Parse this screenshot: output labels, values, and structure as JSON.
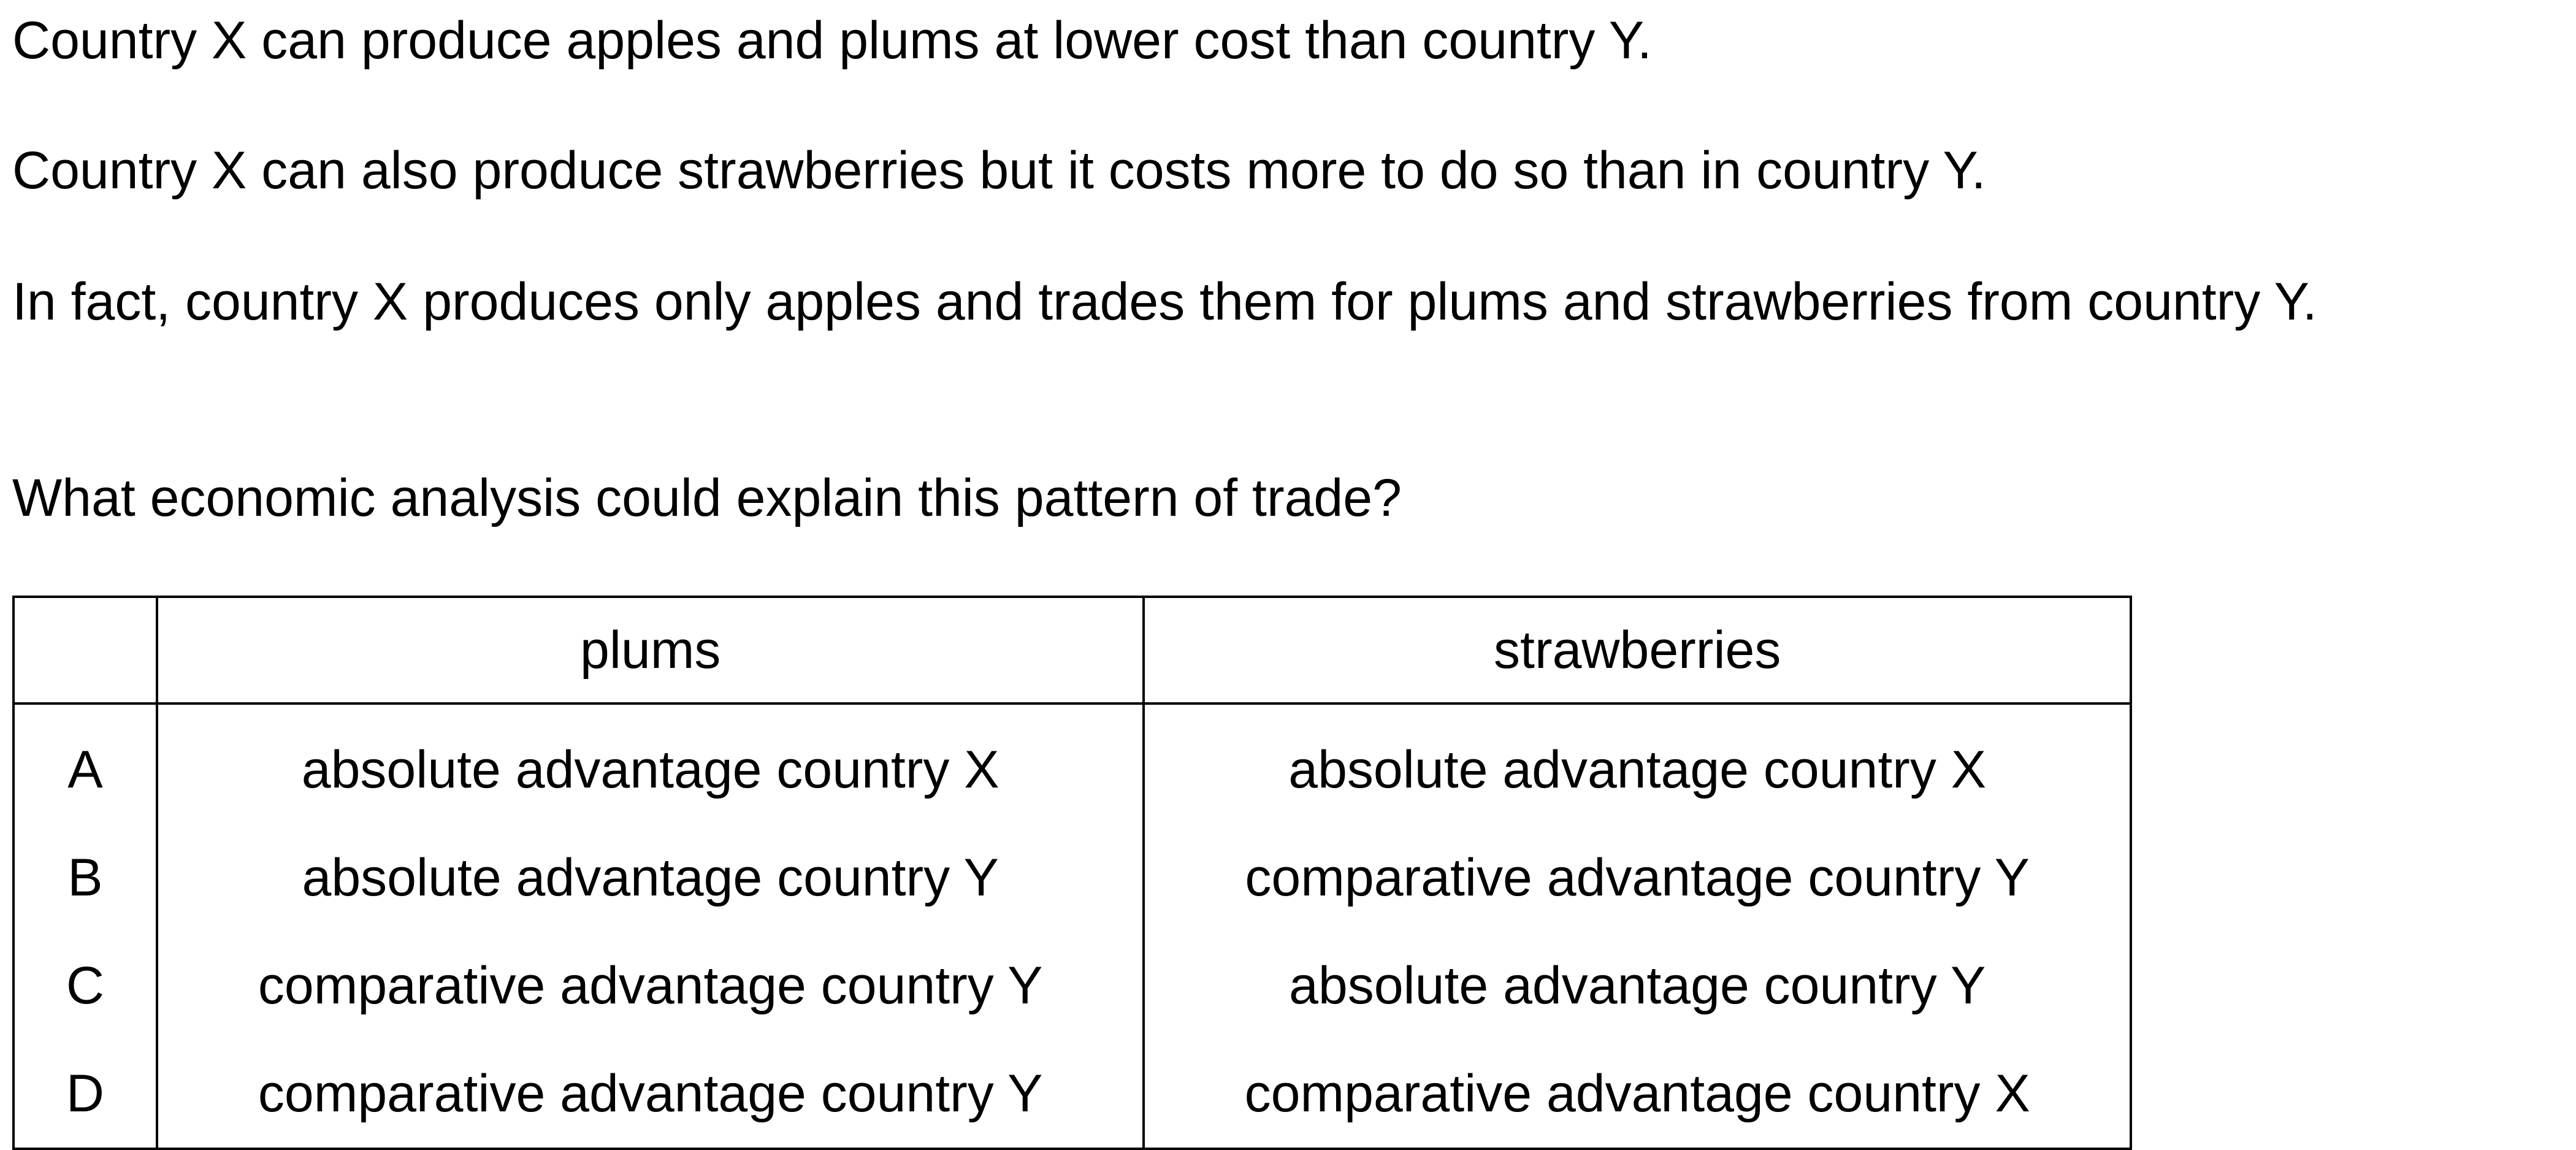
{
  "question": {
    "paragraphs": [
      "Country X can produce apples and plums at lower cost than country Y.",
      "Country X can also produce strawberries but it costs more to do so than in country Y.",
      "In fact, country X produces only apples and trades them for plums and strawberries from country Y.",
      "What economic analysis could explain this pattern of trade?"
    ]
  },
  "table": {
    "headers": [
      "",
      "plums",
      "strawberries"
    ],
    "rows": [
      {
        "letter": "A",
        "plums": "absolute advantage country X",
        "strawberries": "absolute advantage country X"
      },
      {
        "letter": "B",
        "plums": "absolute advantage country Y",
        "strawberries": "comparative advantage country Y"
      },
      {
        "letter": "C",
        "plums": "comparative advantage country Y",
        "strawberries": "absolute advantage country Y"
      },
      {
        "letter": "D",
        "plums": "comparative advantage country Y",
        "strawberries": "comparative advantage country X"
      }
    ]
  }
}
